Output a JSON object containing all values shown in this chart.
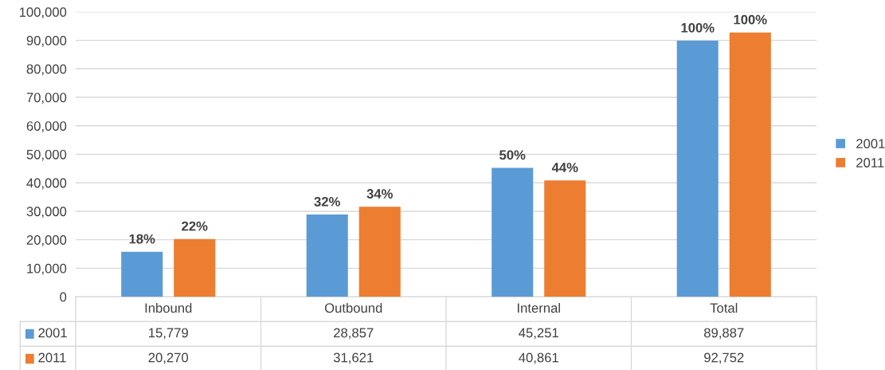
{
  "chart_data": {
    "type": "bar",
    "categories": [
      "Inbound",
      "Outbound",
      "Internal",
      "Total"
    ],
    "series": [
      {
        "name": "2001",
        "color": "#5b9bd5",
        "values": [
          15779,
          28857,
          45251,
          89887
        ],
        "value_labels": [
          "15,779",
          "28,857",
          "45,251",
          "89,887"
        ]
      },
      {
        "name": "2011",
        "color": "#ed7d31",
        "values": [
          20270,
          31621,
          40861,
          92752
        ],
        "value_labels": [
          "20,270",
          "31,621",
          "40,861",
          "92,752"
        ]
      }
    ],
    "annotations": [
      "18%",
      "32%",
      "50%",
      "100%",
      "22%",
      "34%",
      "44%",
      "100%"
    ],
    "ylim": [
      0,
      100000
    ],
    "yticks": [
      0,
      {
        "value": 10000,
        "label": "10,000"
      },
      {
        "value": 20000,
        "label": "20,000"
      },
      {
        "value": 30000,
        "label": "30,000"
      },
      {
        "value": 40000,
        "label": "40,000"
      },
      {
        "value": 50000,
        "label": "50,000"
      },
      {
        "value": 60000,
        "label": "60,000"
      },
      {
        "value": 70000,
        "label": "70,000"
      },
      {
        "value": 80000,
        "label": "80,000"
      },
      {
        "value": 90000,
        "label": "90,000"
      },
      {
        "value": 100000,
        "label": "100,000"
      }
    ],
    "grid": "y",
    "legend": "right"
  }
}
